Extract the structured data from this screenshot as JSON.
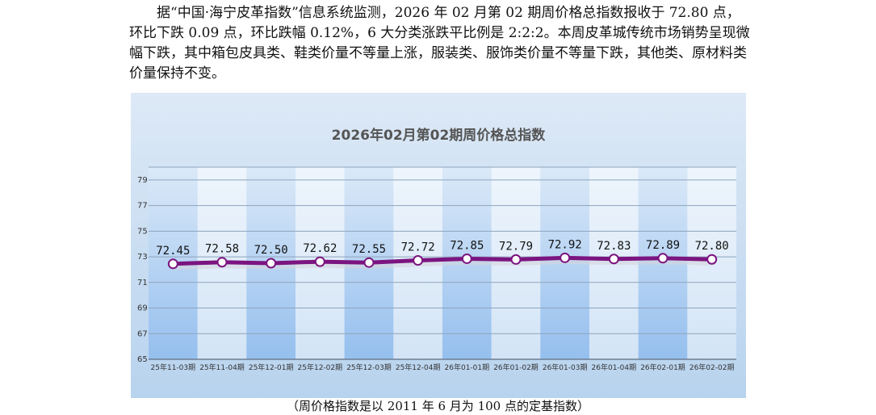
{
  "article": {
    "paragraph": "据“中国·海宁皮革指数”信息系统监测，2026 年 02 月第 02 期周价格总指数报收于 72.80 点，环比下跌 0.09 点，环比跌幅 0.12%，6 大分类涨跌平比例是 2:2:2。本周皮革城传统市场销势呈现微幅下跌，其中箱包皮具类、鞋类价量不等量上涨，服装类、服饰类价量不等量下跌，其他类、原材料类价量保持不变。"
  },
  "caption": "（周价格指数是以 2011 年 6 月为 100 点的定基指数）",
  "colors": {
    "line": "#7b1480",
    "background_top": "#d9e8f6",
    "background_bottom": "#b9d4ee",
    "column_dark": "#9fc5ef",
    "column_light": "#e6f0fa"
  },
  "chart_data": {
    "type": "line",
    "title": "2026年02月第02期周价格总指数",
    "categories": [
      "25年11-03期",
      "25年11-04期",
      "25年12-01期",
      "25年12-02期",
      "25年12-03期",
      "25年12-04期",
      "26年01-01期",
      "26年01-02期",
      "26年01-03期",
      "26年01-04期",
      "26年02-01期",
      "26年02-02期"
    ],
    "values": [
      72.45,
      72.58,
      72.5,
      72.62,
      72.55,
      72.72,
      72.85,
      72.79,
      72.92,
      72.83,
      72.89,
      72.8
    ],
    "value_labels": [
      "72.45",
      "72.58",
      "72.50",
      "72.62",
      "72.55",
      "72.72",
      "72.85",
      "72.79",
      "72.92",
      "72.83",
      "72.89",
      "72.80"
    ],
    "y_ticks": [
      "65",
      "67",
      "69",
      "71",
      "73",
      "75",
      "77",
      "79"
    ],
    "ylim": [
      65,
      80
    ],
    "grid": true,
    "legend": "none"
  }
}
